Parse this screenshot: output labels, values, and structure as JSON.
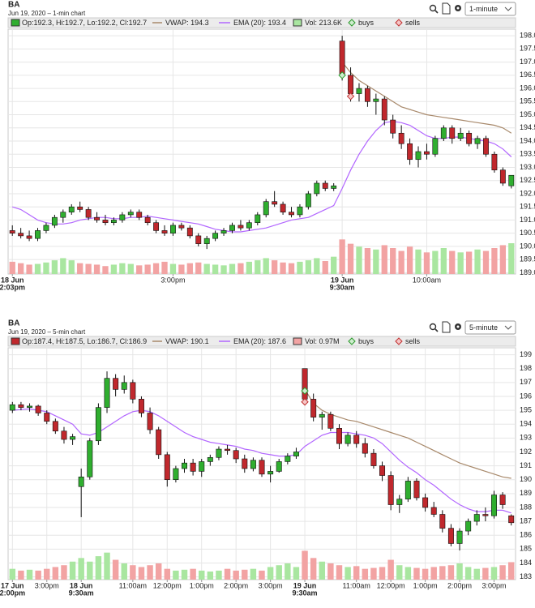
{
  "chart_data": [
    {
      "type": "candlestick",
      "title": "BA",
      "subtitle": "Jun 19, 2020 – 1-min chart",
      "interval": "1-minute",
      "ohlc_label": "Op:192.3, Hi:192.7, Lo:192.2, Cl:192.7",
      "up_color": "#2fae2f",
      "down_color": "#c0282d",
      "xlim": [
        -0.5,
        59.5
      ],
      "xticks": [
        {
          "value": 0,
          "label": "2:03pm",
          "date": "18 Jun"
        },
        {
          "value": 19,
          "label": "3:00pm"
        },
        {
          "value": 39,
          "label": "9:30am",
          "date": "19 Jun"
        },
        {
          "value": 49,
          "label": "10:00am"
        }
      ],
      "ylim": [
        188.95,
        198.25
      ],
      "yticks": [
        {
          "value": 189,
          "label": "189.0"
        },
        189.5,
        {
          "value": 190,
          "label": "190.0"
        },
        190.5,
        {
          "value": 191,
          "label": "191.0"
        },
        191.5,
        {
          "value": 192,
          "label": "192.0"
        },
        192.5,
        {
          "value": 193,
          "label": "193.0"
        },
        193.5,
        {
          "value": 194,
          "label": "194.0"
        },
        194.5,
        {
          "value": 195,
          "label": "195.0"
        },
        195.5,
        {
          "value": 196,
          "label": "196.0"
        },
        196.5,
        {
          "value": 197,
          "label": "197.0"
        },
        197.5,
        {
          "value": 198,
          "label": "198.0"
        }
      ],
      "grid": true,
      "open": [
        190.6,
        190.5,
        190.4,
        190.3,
        190.6,
        190.8,
        191.1,
        191.3,
        191.5,
        191.4,
        191.1,
        191.0,
        190.9,
        191.0,
        191.2,
        191.3,
        191.1,
        190.9,
        190.6,
        190.5,
        190.8,
        190.7,
        190.4,
        190.1,
        190.3,
        190.5,
        190.6,
        190.8,
        190.7,
        190.9,
        191.2,
        191.7,
        191.6,
        191.3,
        191.2,
        191.5,
        192.0,
        192.4,
        192.2,
        197.8,
        196.5,
        195.8,
        196.0,
        195.5,
        195.6,
        194.8,
        194.3,
        193.9,
        193.3,
        193.6,
        193.5,
        194.1,
        194.5,
        194.1,
        194.3,
        193.9,
        194.1,
        193.5,
        192.9,
        192.3
      ],
      "high": [
        190.8,
        190.7,
        190.6,
        190.7,
        190.9,
        191.2,
        191.4,
        191.6,
        191.7,
        191.5,
        191.3,
        191.2,
        191.1,
        191.3,
        191.4,
        191.4,
        191.2,
        191.0,
        190.8,
        190.9,
        190.9,
        190.8,
        190.5,
        190.4,
        190.6,
        190.7,
        190.9,
        191.0,
        191.0,
        191.3,
        191.8,
        192.1,
        191.7,
        191.5,
        191.6,
        192.1,
        192.5,
        192.5,
        192.4,
        198.0,
        196.8,
        196.2,
        196.1,
        195.8,
        195.7,
        195.0,
        194.6,
        194.1,
        193.8,
        193.9,
        194.2,
        194.6,
        194.6,
        194.5,
        194.4,
        194.2,
        194.2,
        193.6,
        193.0,
        192.7
      ],
      "low": [
        190.4,
        190.3,
        190.2,
        190.2,
        190.5,
        190.7,
        190.9,
        191.2,
        191.3,
        191.0,
        190.9,
        190.8,
        190.8,
        190.9,
        191.1,
        191.0,
        190.8,
        190.5,
        190.4,
        190.4,
        190.6,
        190.3,
        190.0,
        189.9,
        190.2,
        190.4,
        190.5,
        190.6,
        190.6,
        190.8,
        191.1,
        191.5,
        191.2,
        191.1,
        191.1,
        191.4,
        191.9,
        192.1,
        192.1,
        196.3,
        195.5,
        195.5,
        195.3,
        195.0,
        194.6,
        194.1,
        193.7,
        193.1,
        193.0,
        193.3,
        193.4,
        194.0,
        193.9,
        194.0,
        193.8,
        193.7,
        193.4,
        192.8,
        192.3,
        192.2
      ],
      "close": [
        190.5,
        190.4,
        190.3,
        190.6,
        190.8,
        191.1,
        191.3,
        191.5,
        191.4,
        191.1,
        191.0,
        190.9,
        191.0,
        191.2,
        191.3,
        191.1,
        190.9,
        190.6,
        190.5,
        190.8,
        190.7,
        190.4,
        190.1,
        190.3,
        190.5,
        190.6,
        190.8,
        190.7,
        190.9,
        191.2,
        191.7,
        191.6,
        191.3,
        191.2,
        191.5,
        192.0,
        192.4,
        192.2,
        192.3,
        196.5,
        195.8,
        196.0,
        195.5,
        195.6,
        194.8,
        194.3,
        193.9,
        193.3,
        193.6,
        193.5,
        194.1,
        194.5,
        194.1,
        194.3,
        193.9,
        194.1,
        193.5,
        192.9,
        192.4,
        192.7
      ],
      "vwap": {
        "name": "VWAP: 194.3",
        "color": "#a8896b",
        "values": [
          null,
          null,
          null,
          null,
          null,
          null,
          null,
          null,
          null,
          null,
          null,
          null,
          null,
          null,
          null,
          null,
          null,
          null,
          null,
          null,
          null,
          null,
          null,
          null,
          null,
          null,
          null,
          null,
          null,
          null,
          null,
          null,
          null,
          null,
          null,
          null,
          null,
          null,
          null,
          197.0,
          196.6,
          196.3,
          196.1,
          195.9,
          195.7,
          195.5,
          195.3,
          195.2,
          195.1,
          195.0,
          194.95,
          194.9,
          194.85,
          194.8,
          194.75,
          194.7,
          194.65,
          194.6,
          194.5,
          194.3
        ]
      },
      "ema": {
        "name": "EMA (20): 193.4",
        "color": "#b266ff",
        "values": [
          191.5,
          191.4,
          191.2,
          191.0,
          190.9,
          190.85,
          190.85,
          190.9,
          191.0,
          191.05,
          191.1,
          191.1,
          191.05,
          191.05,
          191.1,
          191.1,
          191.15,
          191.1,
          191.05,
          191.0,
          190.95,
          190.9,
          190.85,
          190.75,
          190.65,
          190.6,
          190.55,
          190.55,
          190.6,
          190.65,
          190.7,
          190.8,
          190.9,
          191.0,
          191.05,
          191.1,
          191.25,
          191.4,
          191.55,
          192.2,
          192.9,
          193.5,
          194.0,
          194.4,
          194.7,
          194.75,
          194.7,
          194.6,
          194.4,
          194.2,
          194.1,
          194.1,
          194.15,
          194.15,
          194.1,
          194.05,
          194.0,
          193.9,
          193.7,
          193.4
        ]
      },
      "volume": {
        "name": "Vol: 213.6K",
        "ylim": [
          0,
          450
        ],
        "values": [
          85,
          75,
          65,
          70,
          80,
          95,
          110,
          95,
          75,
          70,
          65,
          55,
          65,
          75,
          70,
          60,
          65,
          75,
          85,
          70,
          65,
          75,
          80,
          70,
          65,
          60,
          70,
          75,
          85,
          95,
          110,
          95,
          80,
          75,
          85,
          95,
          110,
          90,
          120,
          240,
          210,
          190,
          180,
          170,
          200,
          180,
          160,
          190,
          170,
          150,
          160,
          180,
          160,
          150,
          155,
          170,
          160,
          180,
          200,
          213.6
        ]
      },
      "buys": {
        "name": "buys",
        "x": [
          39
        ],
        "y": [
          196.5
        ]
      },
      "sells": {
        "name": "sells",
        "x": [
          40
        ],
        "y": [
          195.7
        ]
      }
    },
    {
      "type": "candlestick",
      "title": "BA",
      "subtitle": "Jun 19, 2020 – 5-min chart",
      "interval": "5-minute",
      "ohlc_label": "Op:187.4, Hi:187.5, Lo:186.7, Cl:186.9",
      "up_color": "#2fae2f",
      "down_color": "#c0282d",
      "xlim": [
        -0.5,
        58.5
      ],
      "xticks": [
        {
          "value": 0,
          "label": "2:00pm",
          "date": "17 Jun"
        },
        {
          "value": 4,
          "label": "3:00pm"
        },
        {
          "value": 8,
          "label": "9:30am",
          "date": "18 Jun"
        },
        {
          "value": 14,
          "label": "11:00am"
        },
        {
          "value": 18,
          "label": "12:00pm"
        },
        {
          "value": 22,
          "label": "1:00pm"
        },
        {
          "value": 26,
          "label": "2:00pm"
        },
        {
          "value": 30,
          "label": "3:00pm"
        },
        {
          "value": 34,
          "label": "9:30am",
          "date": "19 Jun"
        },
        {
          "value": 40,
          "label": "11:00am"
        },
        {
          "value": 44,
          "label": "12:00pm"
        },
        {
          "value": 48,
          "label": "1:00pm"
        },
        {
          "value": 52,
          "label": "2:00pm"
        },
        {
          "value": 56,
          "label": "3:00pm"
        }
      ],
      "ylim": [
        182.8,
        199.5
      ],
      "yticks": [
        183,
        184,
        185,
        186,
        187,
        188,
        189,
        190,
        191,
        192,
        193,
        194,
        195,
        196,
        197,
        198,
        199
      ],
      "grid": true,
      "open": [
        195.0,
        195.4,
        195.2,
        195.3,
        194.8,
        194.2,
        193.5,
        192.9,
        189.5,
        190.2,
        192.8,
        195.2,
        197.3,
        196.5,
        197.0,
        195.8,
        194.8,
        193.6,
        191.8,
        190.0,
        190.8,
        191.2,
        190.6,
        191.3,
        191.6,
        192.2,
        192.1,
        191.5,
        190.8,
        191.4,
        190.4,
        190.6,
        191.3,
        191.7,
        198.0,
        195.8,
        194.5,
        194.7,
        193.7,
        192.6,
        193.2,
        192.6,
        191.9,
        191.0,
        190.3,
        188.2,
        188.6,
        189.9,
        188.7,
        188.0,
        187.5,
        186.5,
        185.4,
        186.3,
        187.0,
        187.5,
        187.4,
        188.9,
        187.4
      ],
      "high": [
        195.6,
        195.6,
        195.5,
        195.4,
        195.0,
        194.4,
        193.8,
        193.3,
        190.8,
        193.0,
        195.5,
        197.8,
        197.6,
        197.5,
        197.2,
        196.0,
        195.2,
        193.8,
        192.0,
        191.0,
        191.5,
        191.5,
        191.5,
        191.8,
        192.4,
        192.5,
        192.3,
        191.8,
        191.6,
        191.6,
        191.0,
        191.5,
        191.9,
        192.3,
        198.0,
        196.2,
        194.9,
        194.9,
        194.0,
        193.4,
        193.5,
        193.0,
        192.2,
        191.3,
        190.6,
        188.9,
        190.2,
        190.1,
        189.0,
        188.4,
        187.8,
        186.8,
        186.5,
        187.2,
        187.8,
        188.0,
        189.2,
        189.1,
        187.5
      ],
      "low": [
        194.8,
        195.0,
        194.9,
        194.6,
        194.0,
        193.3,
        192.6,
        192.5,
        187.3,
        190.0,
        192.5,
        194.8,
        196.0,
        196.2,
        195.5,
        194.5,
        193.3,
        191.5,
        189.5,
        189.8,
        190.5,
        190.3,
        190.2,
        191.0,
        191.4,
        191.8,
        191.2,
        190.5,
        190.6,
        190.2,
        189.8,
        190.5,
        191.1,
        191.5,
        195.5,
        194.2,
        193.6,
        193.5,
        192.2,
        192.4,
        192.3,
        191.6,
        190.8,
        189.9,
        187.8,
        187.6,
        188.4,
        188.5,
        187.7,
        187.3,
        186.2,
        185.2,
        184.9,
        186.0,
        186.7,
        187.0,
        187.2,
        187.9,
        186.7
      ],
      "close": [
        195.4,
        195.2,
        195.3,
        194.8,
        194.2,
        193.5,
        192.9,
        193.1,
        190.2,
        192.8,
        195.2,
        197.3,
        196.5,
        197.0,
        195.8,
        194.8,
        193.6,
        191.8,
        190.0,
        190.8,
        191.2,
        190.6,
        191.3,
        191.6,
        192.2,
        192.1,
        191.5,
        190.8,
        191.4,
        190.4,
        190.6,
        191.3,
        191.7,
        192.0,
        195.8,
        194.5,
        194.7,
        193.7,
        192.6,
        193.2,
        192.6,
        191.9,
        191.0,
        190.3,
        188.2,
        188.6,
        189.9,
        188.7,
        188.0,
        187.5,
        186.5,
        185.4,
        186.3,
        187.0,
        187.5,
        187.4,
        188.9,
        188.2,
        186.9
      ],
      "vwap": {
        "name": "VWAP: 190.1",
        "color": "#a8896b",
        "values": [
          null,
          null,
          null,
          null,
          null,
          null,
          null,
          null,
          null,
          null,
          null,
          null,
          null,
          null,
          null,
          null,
          null,
          null,
          null,
          null,
          null,
          null,
          null,
          null,
          null,
          null,
          null,
          null,
          null,
          null,
          null,
          null,
          null,
          null,
          196.5,
          195.5,
          195.0,
          194.7,
          194.5,
          194.3,
          194.2,
          194.0,
          193.8,
          193.6,
          193.4,
          193.2,
          193.0,
          192.7,
          192.4,
          192.1,
          191.8,
          191.5,
          191.2,
          191.0,
          190.8,
          190.6,
          190.4,
          190.2,
          190.1
        ]
      },
      "ema": {
        "name": "EMA (20): 187.6",
        "color": "#b266ff",
        "values": [
          195.0,
          195.05,
          195.1,
          195.0,
          194.9,
          194.6,
          194.3,
          194.0,
          193.3,
          193.2,
          193.4,
          193.8,
          194.2,
          194.6,
          194.9,
          195.0,
          194.9,
          194.6,
          194.2,
          193.8,
          193.4,
          193.1,
          192.9,
          192.7,
          192.6,
          192.5,
          192.4,
          192.2,
          192.1,
          191.9,
          191.8,
          191.7,
          191.7,
          191.8,
          192.4,
          192.8,
          193.2,
          193.4,
          193.4,
          193.4,
          193.3,
          193.2,
          193.0,
          192.6,
          192.0,
          191.4,
          190.9,
          190.5,
          190.0,
          189.6,
          189.1,
          188.6,
          188.2,
          187.9,
          187.7,
          187.7,
          187.8,
          187.8,
          187.6
        ]
      },
      "volume": {
        "name": "Vol: 0.97M",
        "ylim": [
          0,
          3.6
        ],
        "values": [
          0.6,
          0.5,
          0.55,
          0.5,
          0.6,
          0.7,
          0.8,
          1.0,
          1.2,
          1.0,
          1.3,
          1.5,
          1.1,
          0.9,
          0.8,
          0.7,
          0.8,
          0.9,
          0.6,
          0.5,
          0.55,
          0.6,
          0.5,
          0.45,
          0.5,
          0.6,
          0.5,
          0.55,
          0.6,
          0.5,
          0.7,
          0.8,
          0.9,
          0.7,
          1.6,
          1.2,
          1.0,
          0.9,
          0.8,
          0.7,
          0.75,
          0.6,
          0.65,
          0.7,
          1.1,
          0.8,
          0.7,
          0.65,
          0.6,
          0.7,
          0.75,
          0.8,
          0.9,
          0.7,
          0.6,
          0.65,
          0.7,
          0.8,
          0.97
        ]
      },
      "buys": {
        "name": "buys",
        "x": [
          34
        ],
        "y": [
          196.4
        ]
      },
      "sells": {
        "name": "sells",
        "x": [
          34
        ],
        "y": [
          195.6
        ]
      }
    }
  ]
}
